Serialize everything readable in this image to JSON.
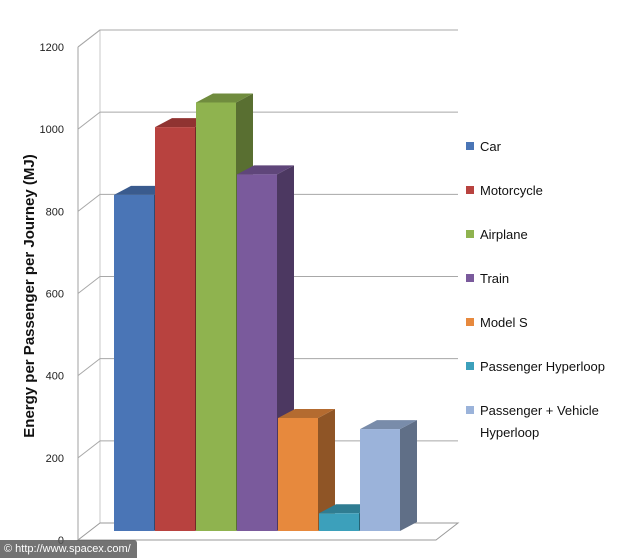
{
  "chart_data": {
    "type": "bar",
    "ylabel": "Energy per Passenger per Journey (MJ)",
    "ylim": [
      0,
      1200
    ],
    "yticks": [
      0,
      200,
      400,
      600,
      800,
      1000,
      1200
    ],
    "grid": true,
    "legend_position": "right",
    "series": [
      {
        "name": "Car",
        "value": 840,
        "color": "#4a75b6"
      },
      {
        "name": "Motorcycle",
        "value": 1005,
        "color": "#b8423f"
      },
      {
        "name": "Airplane",
        "value": 1065,
        "color": "#8fb34f"
      },
      {
        "name": "Train",
        "value": 890,
        "color": "#7a5a9c"
      },
      {
        "name": "Model S",
        "value": 297,
        "color": "#e7893d"
      },
      {
        "name": "Passenger Hyperloop",
        "value": 65,
        "color": "#3ca0bb"
      },
      {
        "name": "Passenger + Vehicle Hyperloop",
        "value": 270,
        "color": "#9bb3da"
      }
    ]
  },
  "credit": "© http://www.spacex.com/"
}
